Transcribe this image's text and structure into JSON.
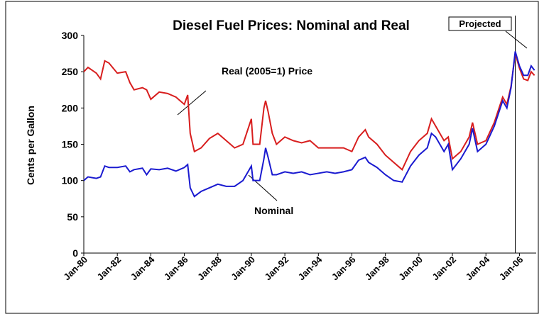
{
  "chart_data": {
    "type": "line",
    "title": "Diesel Fuel Prices: Nominal and Real",
    "y_label": "Cents per Gallon",
    "annotations": [
      "Real (2005=1) Price",
      "Nominal"
    ],
    "projected_label": "Projected",
    "projected_start": 2005.75,
    "x": [
      1980,
      1980.25,
      1980.75,
      1981,
      1981.25,
      1981.5,
      1982,
      1982.5,
      1982.75,
      1983,
      1983.5,
      1983.75,
      1984,
      1984.5,
      1985,
      1985.5,
      1986,
      1986.2,
      1986.35,
      1986.6,
      1987,
      1987.5,
      1988,
      1988.5,
      1989,
      1989.5,
      1990,
      1990.1,
      1990.5,
      1990.75,
      1990.85,
      1991,
      1991.25,
      1991.5,
      1992,
      1992.5,
      1993,
      1993.5,
      1994,
      1994.5,
      1995,
      1995.5,
      1996,
      1996.4,
      1996.8,
      1997,
      1997.5,
      1998,
      1998.5,
      1999,
      1999.5,
      2000,
      2000.5,
      2000.75,
      2001,
      2001.5,
      2001.75,
      2002,
      2002.5,
      2003,
      2003.2,
      2003.5,
      2004,
      2004.5,
      2005,
      2005.25,
      2005.5,
      2005.75,
      2006,
      2006.25,
      2006.5,
      2006.7,
      2006.9
    ],
    "series": [
      {
        "color": "#d81e1e",
        "values": [
          250,
          256,
          248,
          240,
          265,
          262,
          248,
          250,
          235,
          225,
          228,
          225,
          212,
          222,
          220,
          215,
          205,
          218,
          165,
          140,
          145,
          158,
          165,
          155,
          145,
          150,
          185,
          150,
          150,
          200,
          210,
          195,
          165,
          150,
          160,
          155,
          152,
          155,
          145,
          145,
          145,
          145,
          140,
          160,
          170,
          160,
          150,
          135,
          125,
          115,
          140,
          155,
          165,
          185,
          175,
          155,
          160,
          130,
          140,
          160,
          180,
          150,
          155,
          180,
          215,
          205,
          230,
          275,
          255,
          240,
          238,
          250,
          245
        ]
      },
      {
        "color": "#1a1ad0",
        "values": [
          100,
          105,
          103,
          105,
          120,
          118,
          118,
          120,
          112,
          115,
          117,
          108,
          116,
          115,
          117,
          113,
          118,
          122,
          90,
          78,
          85,
          90,
          95,
          92,
          92,
          100,
          120,
          100,
          100,
          130,
          145,
          132,
          108,
          108,
          112,
          110,
          112,
          108,
          110,
          112,
          110,
          112,
          115,
          128,
          132,
          125,
          118,
          108,
          100,
          98,
          120,
          135,
          145,
          165,
          160,
          140,
          150,
          115,
          130,
          150,
          172,
          140,
          150,
          175,
          210,
          200,
          228,
          278,
          258,
          245,
          245,
          258,
          252
        ]
      }
    ],
    "xlim": [
      1980,
      2007
    ],
    "xticks": [
      {
        "value": 1980,
        "label": "Jan-80"
      },
      {
        "value": 1982,
        "label": "Jan-82"
      },
      {
        "value": 1984,
        "label": "Jan-84"
      },
      {
        "value": 1986,
        "label": "Jan-86"
      },
      {
        "value": 1988,
        "label": "Jan-88"
      },
      {
        "value": 1990,
        "label": "Jan-90"
      },
      {
        "value": 1992,
        "label": "Jan-92"
      },
      {
        "value": 1994,
        "label": "Jan-94"
      },
      {
        "value": 1996,
        "label": "Jan-96"
      },
      {
        "value": 1998,
        "label": "Jan-98"
      },
      {
        "value": 2000,
        "label": "Jan-00"
      },
      {
        "value": 2002,
        "label": "Jan-02"
      },
      {
        "value": 2004,
        "label": "Jan-04"
      },
      {
        "value": 2006,
        "label": "Jan-06"
      }
    ],
    "ylim": [
      0,
      300
    ],
    "yticks": [
      0,
      50,
      100,
      150,
      200,
      250,
      300
    ]
  }
}
